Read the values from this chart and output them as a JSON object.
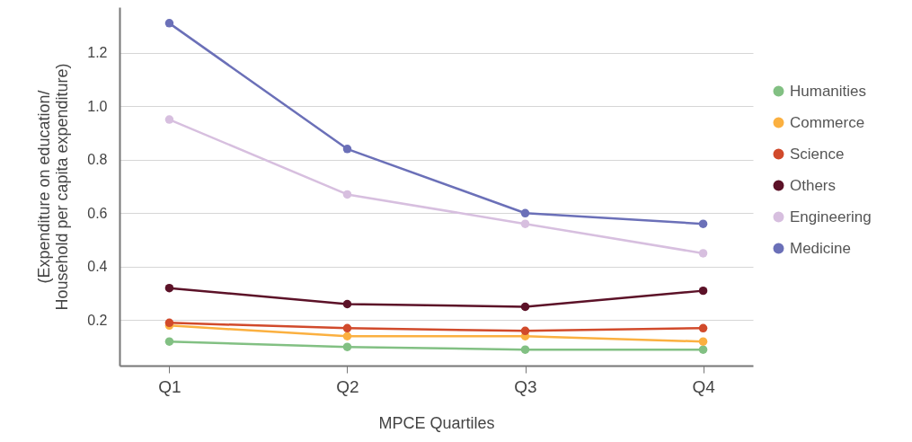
{
  "chart_data": {
    "type": "line",
    "xlabel": "MPCE Quartiles",
    "ylabel": "(Expenditure on education/\nHousehold per capita expenditure)",
    "categories": [
      "Q1",
      "Q2",
      "Q3",
      "Q4"
    ],
    "series": [
      {
        "name": "Humanities",
        "color": "#82c083",
        "values": [
          0.12,
          0.1,
          0.09,
          0.09
        ]
      },
      {
        "name": "Commerce",
        "color": "#fbb040",
        "values": [
          0.18,
          0.14,
          0.14,
          0.12
        ]
      },
      {
        "name": "Science",
        "color": "#d14a2b",
        "values": [
          0.19,
          0.17,
          0.16,
          0.17
        ]
      },
      {
        "name": "Others",
        "color": "#5c1228",
        "values": [
          0.32,
          0.26,
          0.25,
          0.31
        ]
      },
      {
        "name": "Engineering",
        "color": "#d7bfdf",
        "values": [
          0.95,
          0.67,
          0.56,
          0.45
        ]
      },
      {
        "name": "Medicine",
        "color": "#6b70b8",
        "values": [
          1.31,
          0.84,
          0.6,
          0.56
        ]
      }
    ],
    "ylim": [
      0.03,
      1.37
    ],
    "yticks": [
      0.2,
      0.4,
      0.6,
      0.8,
      {
        "value": 1,
        "label": "1.0"
      },
      1.2
    ],
    "grid": "y",
    "legend": "right",
    "marker": "circle",
    "line_style": "solid"
  }
}
